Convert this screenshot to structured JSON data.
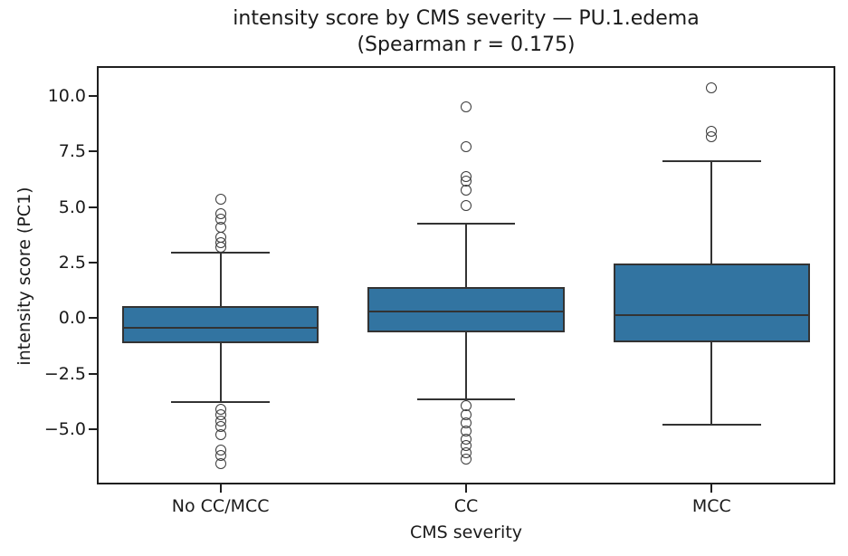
{
  "figure": {
    "title_line1": "intensity score by CMS severity — PU.1.edema",
    "title_line2": "(Spearman r = 0.175)",
    "xlabel": "CMS severity",
    "ylabel": "intensity score (PC1)"
  },
  "chart_data": {
    "type": "box",
    "title": "intensity score by CMS severity — PU.1.edema (Spearman r = 0.175)",
    "subtitle_stat": "Spearman r = 0.175",
    "xlabel": "CMS severity",
    "ylabel": "intensity score (PC1)",
    "categories": [
      "No CC/MCC",
      "CC",
      "MCC"
    ],
    "ylim": [
      -7.45,
      11.3
    ],
    "yticks": [
      -5.0,
      -2.5,
      0.0,
      2.5,
      5.0,
      7.5,
      10.0
    ],
    "ytick_labels": [
      "−5.0",
      "−2.5",
      "0.0",
      "2.5",
      "5.0",
      "7.5",
      "10.0"
    ],
    "grid": false,
    "legend": "none",
    "box_fill_color": "#3274a1",
    "line_color": "#333333",
    "series": [
      {
        "name": "No CC/MCC",
        "whisker_low": -3.8,
        "q1": -1.15,
        "median": -0.45,
        "q3": 0.55,
        "whisker_high": 2.95,
        "outliers": [
          5.35,
          4.7,
          4.45,
          4.1,
          3.65,
          3.4,
          3.2,
          -4.1,
          -4.35,
          -4.65,
          -4.9,
          -5.25,
          -5.95,
          -6.2,
          -6.55
        ]
      },
      {
        "name": "CC",
        "whisker_low": -3.65,
        "q1": -0.65,
        "median": 0.3,
        "q3": 1.4,
        "whisker_high": 4.25,
        "outliers": [
          9.5,
          7.7,
          6.35,
          6.15,
          5.75,
          5.05,
          -3.95,
          -4.35,
          -4.7,
          -5.1,
          -5.45,
          -5.75,
          -6.05,
          -6.35
        ]
      },
      {
        "name": "MCC",
        "whisker_low": -4.8,
        "q1": -1.1,
        "median": 0.15,
        "q3": 2.45,
        "whisker_high": 7.05,
        "outliers": [
          10.35,
          8.4,
          8.15
        ]
      }
    ]
  }
}
